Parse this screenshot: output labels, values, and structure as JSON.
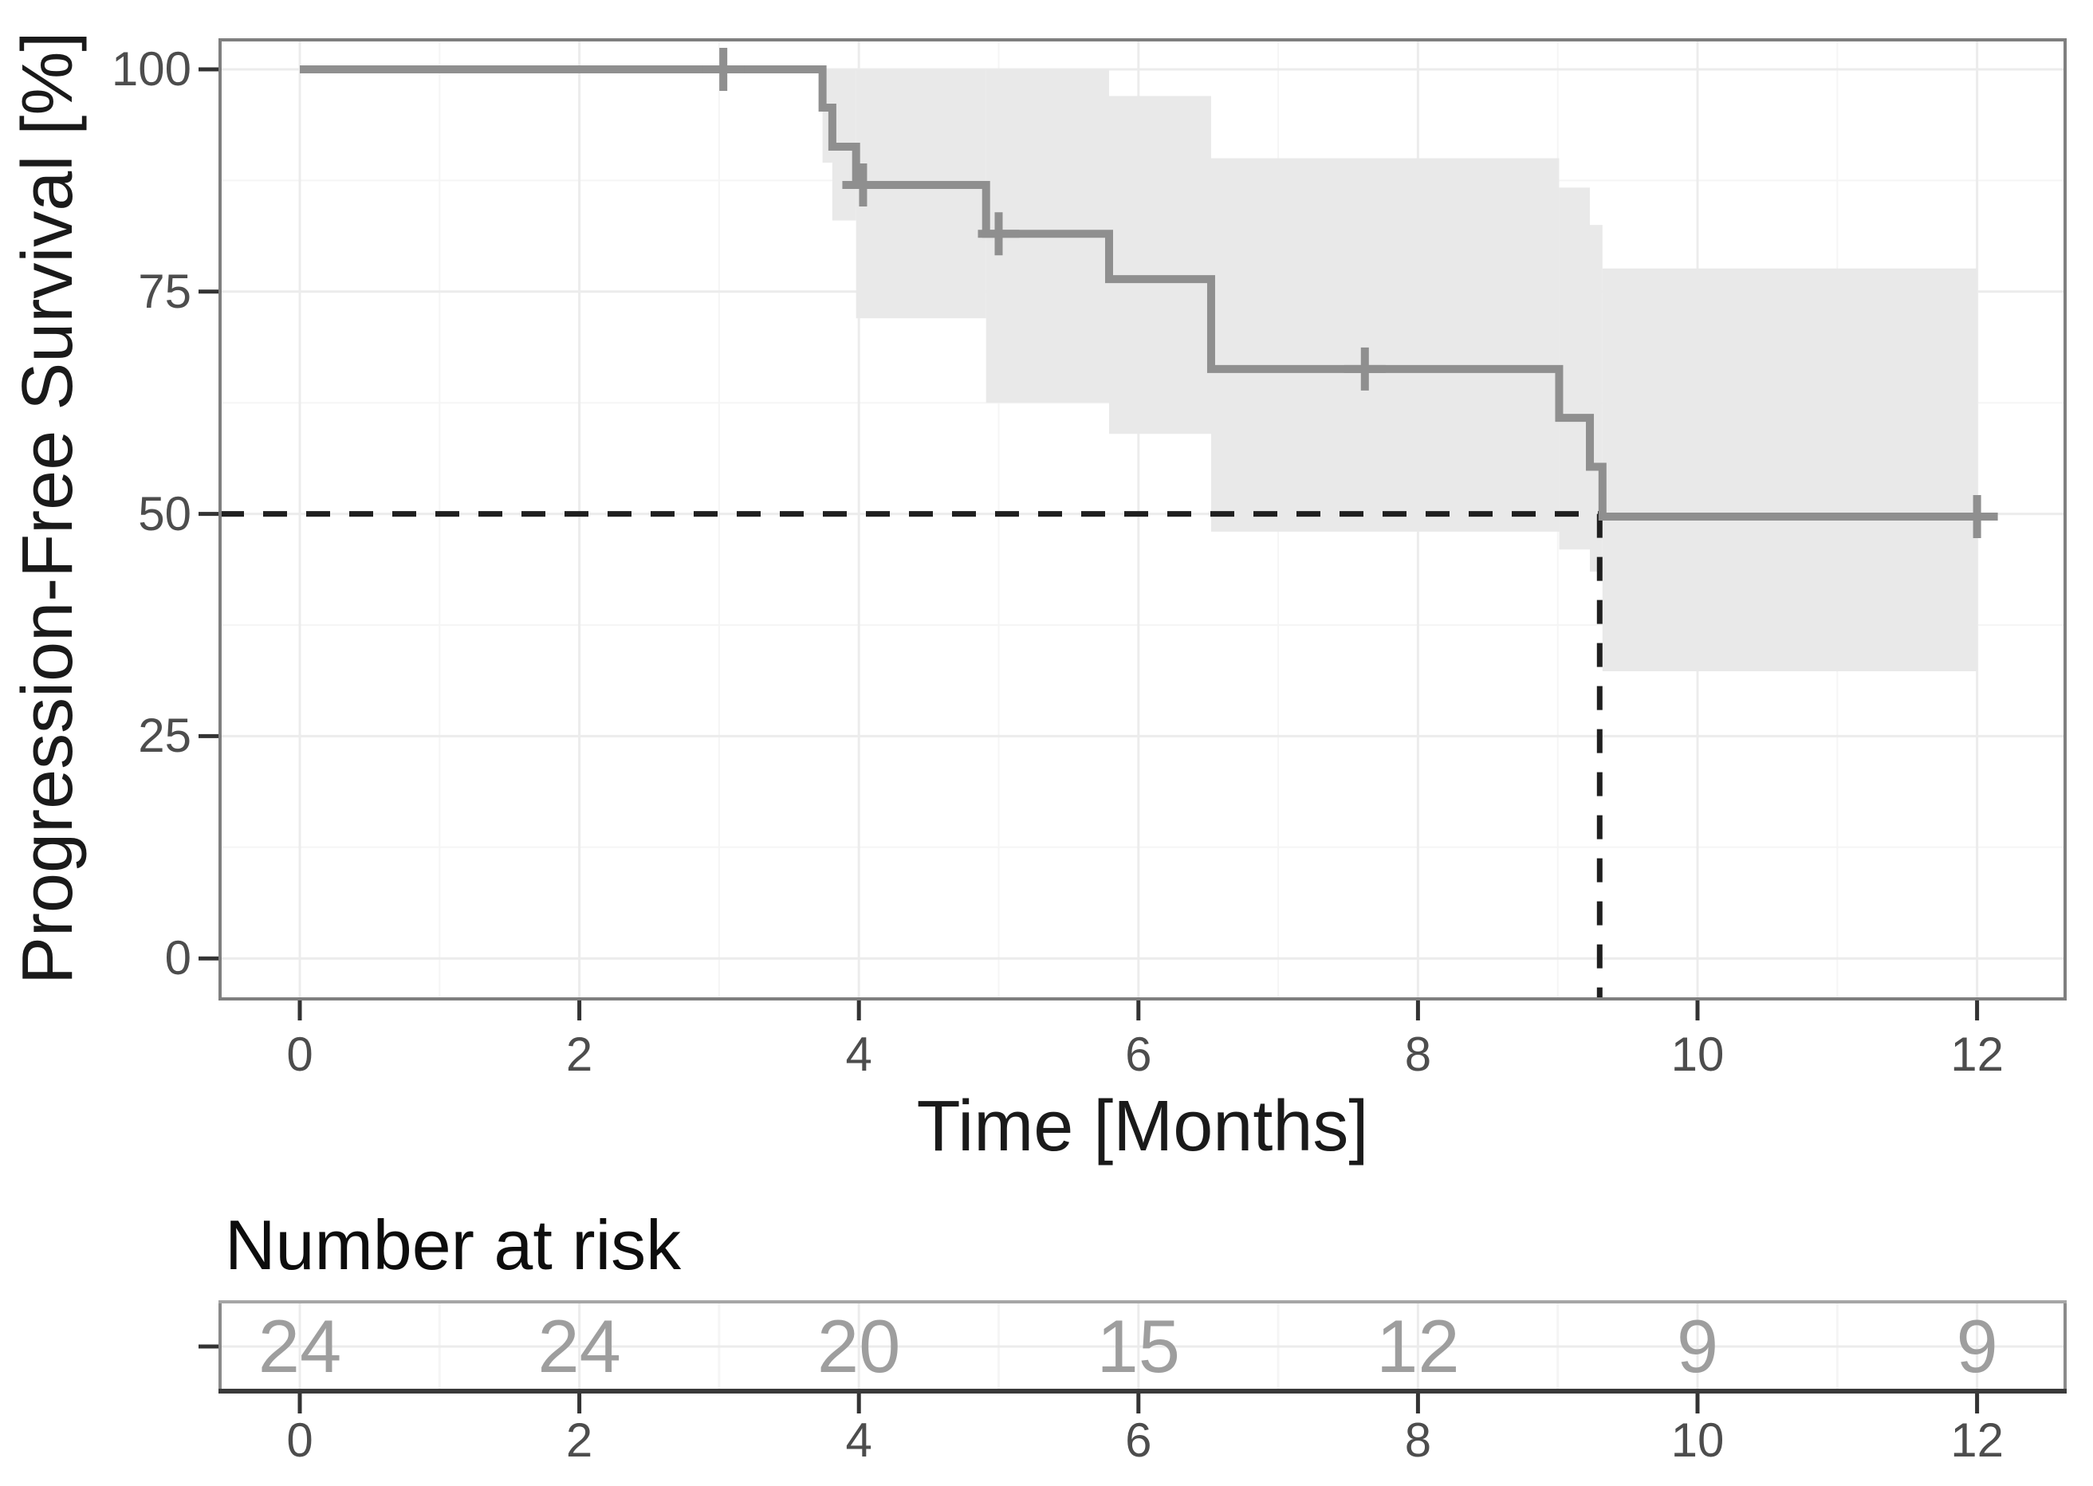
{
  "labels": {
    "y_axis_title": "Progression-Free Survival [%]",
    "x_axis_title": "Time [Months]",
    "risk_table_title": "Number at risk"
  },
  "chart_data": {
    "type": "line",
    "subtype": "kaplan-meier-step-curve",
    "title": "",
    "xlabel": "Time [Months]",
    "ylabel": "Progression-Free Survival [%]",
    "xlim": [
      0,
      12
    ],
    "ylim": [
      0,
      100
    ],
    "x_ticks": [
      0,
      2,
      4,
      6,
      8,
      10,
      12
    ],
    "y_ticks": [
      100,
      75,
      50,
      25,
      0
    ],
    "grid": "on",
    "legend": "none",
    "survival_curve_pct": [
      [
        0,
        100
      ],
      [
        3.74,
        100
      ],
      [
        3.74,
        95.7
      ],
      [
        3.81,
        95.7
      ],
      [
        3.81,
        91.3
      ],
      [
        3.98,
        91.3
      ],
      [
        3.98,
        87.0
      ],
      [
        4.91,
        87.0
      ],
      [
        4.91,
        81.5
      ],
      [
        5.79,
        81.5
      ],
      [
        5.79,
        76.4
      ],
      [
        6.52,
        76.4
      ],
      [
        6.52,
        66.3
      ],
      [
        9.01,
        66.3
      ],
      [
        9.01,
        60.8
      ],
      [
        9.23,
        60.8
      ],
      [
        9.23,
        55.3
      ],
      [
        9.32,
        55.3
      ],
      [
        9.32,
        49.7
      ],
      [
        12.03,
        49.7
      ]
    ],
    "censor_marks_pct": [
      [
        3.03,
        100
      ],
      [
        4.03,
        87.0
      ],
      [
        5.0,
        81.5
      ],
      [
        7.62,
        66.3
      ],
      [
        12.0,
        49.7
      ]
    ],
    "confidence_band_pct": [
      [
        3.74,
        3.81,
        89.5,
        100
      ],
      [
        3.81,
        3.98,
        83.0,
        100
      ],
      [
        3.98,
        4.91,
        72.0,
        100
      ],
      [
        4.91,
        5.79,
        62.5,
        100
      ],
      [
        5.79,
        6.52,
        59.0,
        97.0
      ],
      [
        6.52,
        9.01,
        48.0,
        90.0
      ],
      [
        9.01,
        9.23,
        46.0,
        86.7
      ],
      [
        9.23,
        9.32,
        43.5,
        82.5
      ],
      [
        9.32,
        12.0,
        32.3,
        77.6
      ]
    ],
    "median_line": {
      "time_months": 9.3,
      "survival_pct": 50
    },
    "number_at_risk": {
      "title": "Number at risk",
      "times": [
        0,
        2,
        4,
        6,
        8,
        10,
        12
      ],
      "values": [
        24,
        24,
        20,
        15,
        12,
        9,
        9
      ]
    }
  },
  "colors": {
    "background": "#ffffff",
    "curve": "#8f8f8f",
    "censor": "#8f8f8f",
    "ribbon": "#e9e9e9",
    "grid_major": "#ececec",
    "grid_minor": "#f5f5f5",
    "panel_border": "#7f7f7f",
    "risk_border_top": "#a6a6a6",
    "risk_border_side": "#8a8a8a",
    "risk_border_bottom": "#3a3a3a",
    "tick_mark": "#333333",
    "tick_label": "#4d4d4d",
    "axis_title": "#1a1a1a",
    "risk_value": "#9e9e9e",
    "dashed_line": "#1f1f1f"
  }
}
